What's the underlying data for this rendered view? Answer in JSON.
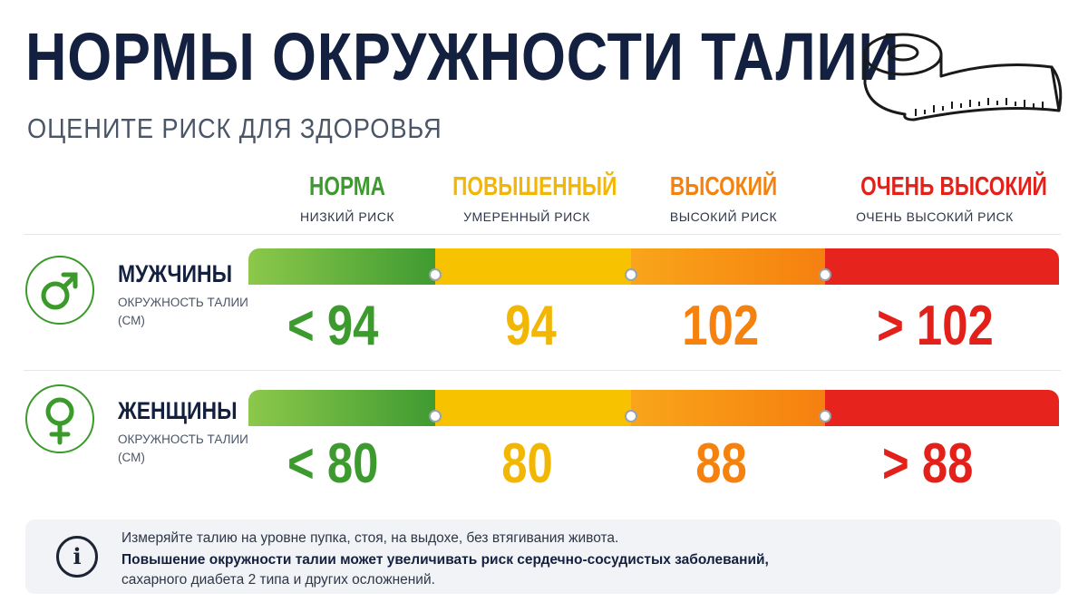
{
  "header": {
    "title": "НОРМЫ ОКРУЖНОСТИ ТАЛИИ",
    "subtitle": "ОЦЕНИТЕ РИСК ДЛЯ ЗДОРОВЬЯ",
    "icon": "measuring-tape-icon"
  },
  "categories": [
    {
      "name": "НОРМА",
      "risk": "НИЗКИЙ РИСК",
      "color": "#3d9a2e"
    },
    {
      "name": "ПОВЫШЕННЫЙ",
      "risk": "УМЕРЕННЫЙ РИСК",
      "color": "#f2b705"
    },
    {
      "name": "ВЫСОКИЙ",
      "risk": "ВЫСОКИЙ РИСК",
      "color": "#f5820f"
    },
    {
      "name": "ОЧЕНЬ ВЫСОКИЙ",
      "risk": "ОЧЕНЬ ВЫСОКИЙ  РИСК",
      "color": "#e3211b"
    }
  ],
  "men": {
    "label": "МУЖЧИНЫ",
    "unit": "ОКРУЖНОСТЬ ТАЛИИ (СМ)",
    "icon": "male-symbol-icon",
    "values": [
      "< 94",
      "94",
      "102",
      "> 102"
    ]
  },
  "women": {
    "label": "ЖЕНЩИНЫ",
    "unit": "ОКРУЖНОСТЬ ТАЛИИ (СМ)",
    "icon": "female-symbol-icon",
    "values": [
      "< 80",
      "80",
      "88",
      "> 88"
    ]
  },
  "info": {
    "icon": "info-icon",
    "line1": "Измеряйте талию на уровне пупка, стоя, на выдохе, без втягивания живота.",
    "line2": "Повышение окружности талии может увеличивать риск сердечно-сосудистых заболеваний,",
    "line3": "сахарного диабета 2 типа и других осложнений."
  }
}
